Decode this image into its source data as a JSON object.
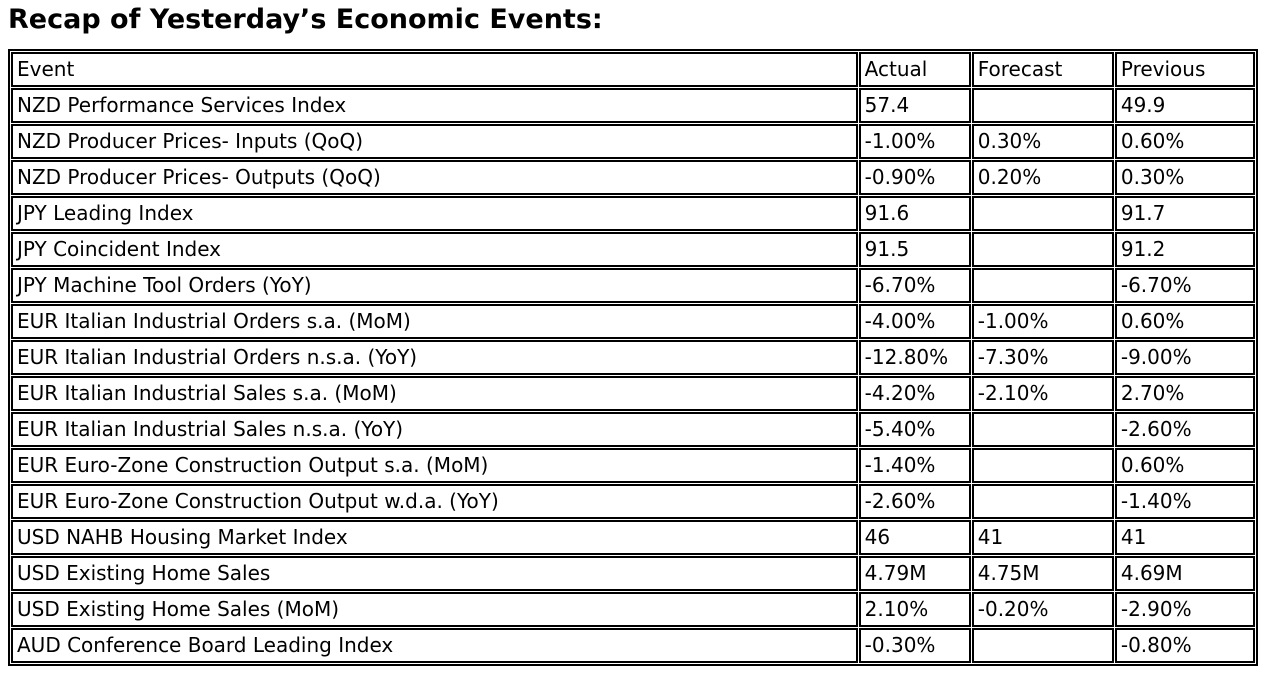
{
  "title": "Recap of Yesterday’s Economic Events:",
  "colors": {
    "text": "#000000",
    "border": "#000000",
    "background": "#ffffff"
  },
  "table": {
    "columns": [
      "Event",
      "Actual",
      "Forecast",
      "Previous"
    ],
    "rows": [
      [
        "NZD Performance Services Index",
        "57.4",
        "",
        "49.9"
      ],
      [
        "NZD Producer Prices- Inputs (QoQ)",
        "-1.00%",
        "0.30%",
        "0.60%"
      ],
      [
        "NZD Producer Prices- Outputs (QoQ)",
        "-0.90%",
        "0.20%",
        "0.30%"
      ],
      [
        "JPY Leading Index",
        "91.6",
        "",
        "91.7"
      ],
      [
        "JPY Coincident Index",
        "91.5",
        "",
        "91.2"
      ],
      [
        "JPY Machine Tool Orders (YoY)",
        "-6.70%",
        "",
        "-6.70%"
      ],
      [
        "EUR Italian Industrial Orders s.a. (MoM)",
        "-4.00%",
        "-1.00%",
        "0.60%"
      ],
      [
        "EUR Italian Industrial Orders n.s.a. (YoY)",
        "-12.80%",
        "-7.30%",
        "-9.00%"
      ],
      [
        "EUR Italian Industrial Sales s.a. (MoM)",
        "-4.20%",
        "-2.10%",
        "2.70%"
      ],
      [
        "EUR Italian Industrial Sales n.s.a. (YoY)",
        "-5.40%",
        "",
        "-2.60%"
      ],
      [
        "EUR Euro-Zone Construction Output s.a. (MoM)",
        "-1.40%",
        "",
        "0.60%"
      ],
      [
        "EUR Euro-Zone Construction Output w.d.a. (YoY)",
        "-2.60%",
        "",
        "-1.40%"
      ],
      [
        "USD NAHB Housing Market Index",
        "46",
        "41",
        "41"
      ],
      [
        "USD Existing Home Sales",
        "4.79M",
        "4.75M",
        "4.69M"
      ],
      [
        "USD Existing Home Sales (MoM)",
        "2.10%",
        "-0.20%",
        "-2.90%"
      ],
      [
        "AUD Conference Board Leading Index",
        "-0.30%",
        "",
        "-0.80%"
      ]
    ]
  }
}
